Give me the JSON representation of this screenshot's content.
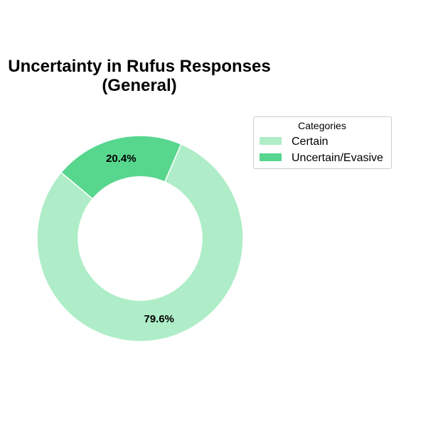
{
  "chart_data": {
    "type": "pie",
    "variant": "donut",
    "title_lines": [
      "Uncertainty in Rufus Responses",
      "(General)"
    ],
    "categories": [
      "Certain",
      "Uncertain/Evasive"
    ],
    "values": [
      79.6,
      20.4
    ],
    "value_labels": [
      "79.6%",
      "20.4%"
    ],
    "colors": [
      "#aeedc7",
      "#57d68d"
    ],
    "start_angle_deg": 140,
    "direction": "counterclockwise",
    "legend": {
      "title": "Categories",
      "placement": "right"
    }
  }
}
